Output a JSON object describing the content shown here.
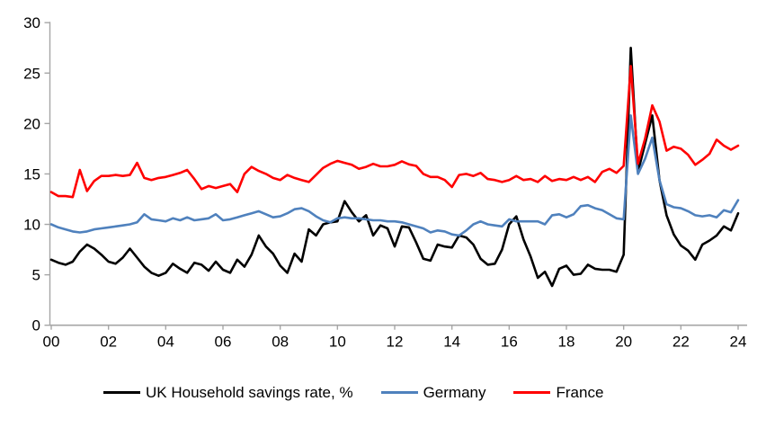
{
  "chart_data": {
    "type": "line",
    "title": "",
    "xlabel": "",
    "ylabel": "",
    "x_unit": "quarterly",
    "x_start": "2000Q1",
    "x_end": "2024Q1",
    "x_tick_labels": [
      "00",
      "02",
      "04",
      "06",
      "08",
      "10",
      "12",
      "14",
      "16",
      "18",
      "20",
      "22",
      "24"
    ],
    "y_ticks": [
      0,
      5,
      10,
      15,
      20,
      25,
      30
    ],
    "ylim": [
      0,
      30
    ],
    "grid": false,
    "legend_position": "bottom",
    "axis_color": "#a6a6a6",
    "tick_label_color": "#000000",
    "series": [
      {
        "name": "UK Household savings rate, %",
        "color": "#000000",
        "values": [
          6.5,
          6.2,
          6.0,
          6.3,
          7.3,
          8.0,
          7.6,
          7.0,
          6.3,
          6.1,
          6.7,
          7.6,
          6.7,
          5.8,
          5.2,
          4.9,
          5.2,
          6.1,
          5.6,
          5.2,
          6.2,
          6.0,
          5.4,
          6.3,
          5.5,
          5.2,
          6.5,
          5.8,
          7.0,
          8.9,
          7.8,
          7.1,
          5.9,
          5.2,
          7.1,
          6.3,
          9.5,
          8.9,
          10.0,
          10.2,
          10.3,
          12.3,
          11.2,
          10.3,
          10.9,
          8.9,
          9.9,
          9.6,
          7.8,
          9.8,
          9.7,
          8.2,
          6.6,
          6.4,
          8.0,
          7.8,
          7.7,
          8.9,
          8.7,
          8.0,
          6.6,
          6.0,
          6.1,
          7.5,
          10.0,
          10.8,
          8.5,
          6.8,
          4.7,
          5.3,
          3.9,
          5.6,
          5.9,
          5.0,
          5.1,
          6.0,
          5.6,
          5.5,
          5.5,
          5.3,
          7.0,
          27.5,
          15.2,
          18.0,
          20.8,
          14.4,
          10.9,
          9.0,
          7.9,
          7.4,
          6.5,
          8.0,
          8.4,
          8.9,
          9.8,
          9.4,
          11.1
        ]
      },
      {
        "name": "Germany",
        "color": "#4f81bd",
        "values": [
          10.0,
          9.7,
          9.5,
          9.3,
          9.2,
          9.3,
          9.5,
          9.6,
          9.7,
          9.8,
          9.9,
          10.0,
          10.2,
          11.0,
          10.5,
          10.4,
          10.3,
          10.6,
          10.4,
          10.7,
          10.4,
          10.5,
          10.6,
          11.0,
          10.4,
          10.5,
          10.7,
          10.9,
          11.1,
          11.3,
          11.0,
          10.7,
          10.8,
          11.1,
          11.5,
          11.6,
          11.3,
          10.8,
          10.4,
          10.2,
          10.6,
          10.7,
          10.6,
          10.6,
          10.5,
          10.4,
          10.4,
          10.3,
          10.3,
          10.2,
          10.0,
          9.8,
          9.6,
          9.2,
          9.4,
          9.3,
          9.0,
          8.9,
          9.4,
          10.0,
          10.3,
          10.0,
          9.9,
          9.8,
          10.5,
          10.3,
          10.3,
          10.3,
          10.3,
          10.0,
          10.9,
          11.0,
          10.7,
          11.0,
          11.8,
          11.9,
          11.6,
          11.4,
          11.0,
          10.6,
          10.5,
          20.8,
          15.0,
          16.5,
          18.6,
          14.4,
          12.0,
          11.7,
          11.6,
          11.3,
          10.9,
          10.8,
          10.9,
          10.7,
          11.4,
          11.2,
          12.4
        ]
      },
      {
        "name": "France",
        "color": "#ff0000",
        "values": [
          13.2,
          12.8,
          12.8,
          12.7,
          15.4,
          13.3,
          14.3,
          14.8,
          14.8,
          14.9,
          14.8,
          14.9,
          16.1,
          14.6,
          14.4,
          14.6,
          14.7,
          14.9,
          15.1,
          15.4,
          14.5,
          13.5,
          13.8,
          13.6,
          13.8,
          14.0,
          13.2,
          15.0,
          15.7,
          15.3,
          15.0,
          14.6,
          14.4,
          14.9,
          14.6,
          14.4,
          14.2,
          14.9,
          15.6,
          16.0,
          16.3,
          16.1,
          15.9,
          15.5,
          15.7,
          16.0,
          15.75,
          15.75,
          15.9,
          16.25,
          15.95,
          15.8,
          15.0,
          14.7,
          14.7,
          14.4,
          13.7,
          14.9,
          15.0,
          14.8,
          15.1,
          14.5,
          14.4,
          14.2,
          14.4,
          14.8,
          14.4,
          14.5,
          14.2,
          14.8,
          14.3,
          14.5,
          14.4,
          14.7,
          14.4,
          14.7,
          14.2,
          15.2,
          15.5,
          15.1,
          15.8,
          25.7,
          16.0,
          18.5,
          21.8,
          20.2,
          17.3,
          17.7,
          17.5,
          16.9,
          15.9,
          16.4,
          17.0,
          18.4,
          17.8,
          17.4,
          17.8
        ]
      }
    ]
  }
}
